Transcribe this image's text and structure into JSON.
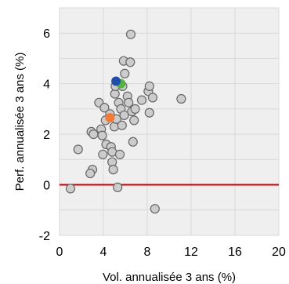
{
  "chart_data": {
    "type": "scatter",
    "xlabel": "Vol. annualisée 3 ans (%)",
    "ylabel": "Perf. annualisée 3 ans (%)",
    "xlim": [
      0,
      20
    ],
    "ylim": [
      -2,
      7
    ],
    "xticks": [
      0,
      4,
      8,
      12,
      16,
      20
    ],
    "yticks": [
      -2,
      0,
      2,
      4,
      6
    ],
    "grid": true,
    "reference_line_y": 0,
    "colors": {
      "plot_background": "#efefef",
      "grid": "#d9d9d9",
      "point_fill": "#cccccc",
      "point_stroke": "#666666",
      "reference_line": "#cc0000",
      "highlight_blue": "#1f4fa8",
      "highlight_green": "#56b33e",
      "highlight_orange": "#f47b37"
    },
    "series": [
      {
        "color": "#cccccc",
        "points": [
          [
            1.0,
            -0.15
          ],
          [
            1.7,
            1.4
          ],
          [
            2.9,
            2.1
          ],
          [
            3.0,
            0.6
          ],
          [
            3.1,
            2.0
          ],
          [
            2.8,
            0.45
          ],
          [
            3.6,
            3.25
          ],
          [
            3.8,
            2.2
          ],
          [
            3.9,
            1.95
          ],
          [
            3.95,
            1.2
          ],
          [
            4.1,
            3.05
          ],
          [
            4.2,
            2.55
          ],
          [
            4.25,
            1.6
          ],
          [
            4.6,
            2.8
          ],
          [
            4.7,
            1.5
          ],
          [
            4.8,
            1.3
          ],
          [
            4.8,
            0.9
          ],
          [
            4.9,
            0.6
          ],
          [
            5.0,
            2.3
          ],
          [
            5.05,
            3.6
          ],
          [
            5.1,
            3.9
          ],
          [
            5.2,
            2.6
          ],
          [
            5.3,
            -0.1
          ],
          [
            5.4,
            3.25
          ],
          [
            5.5,
            1.2
          ],
          [
            5.6,
            3.0
          ],
          [
            5.7,
            2.35
          ],
          [
            5.75,
            3.9
          ],
          [
            5.85,
            4.9
          ],
          [
            5.9,
            2.75
          ],
          [
            5.95,
            4.4
          ],
          [
            6.2,
            3.5
          ],
          [
            6.3,
            3.25
          ],
          [
            6.45,
            4.85
          ],
          [
            6.5,
            5.95
          ],
          [
            6.6,
            2.9
          ],
          [
            6.7,
            1.7
          ],
          [
            6.8,
            2.55
          ],
          [
            6.9,
            3.0
          ],
          [
            7.5,
            3.35
          ],
          [
            8.1,
            3.7
          ],
          [
            8.2,
            3.9
          ],
          [
            8.2,
            2.85
          ],
          [
            8.5,
            3.45
          ],
          [
            8.7,
            -0.95
          ],
          [
            11.1,
            3.4
          ]
        ]
      },
      {
        "color": "#56b33e",
        "points": [
          [
            5.6,
            4.0
          ]
        ]
      },
      {
        "color": "#1f4fa8",
        "points": [
          [
            5.15,
            4.1
          ]
        ]
      },
      {
        "color": "#f47b37",
        "points": [
          [
            4.6,
            2.65
          ]
        ]
      }
    ]
  }
}
